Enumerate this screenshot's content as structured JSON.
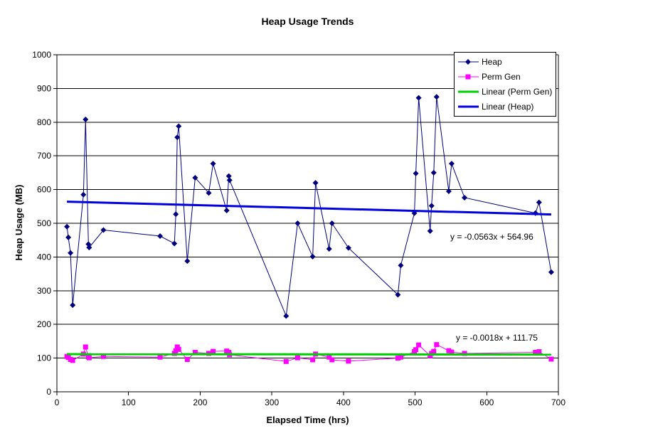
{
  "title": "Heap Usage Trends",
  "axes": {
    "x_label": "Elapsed Time (hrs)",
    "y_label": "Heap Usage (MB)",
    "x_ticks": [
      0,
      100,
      200,
      300,
      400,
      500,
      600,
      700
    ],
    "y_ticks": [
      0,
      100,
      200,
      300,
      400,
      500,
      600,
      700,
      800,
      900,
      1000
    ]
  },
  "legend": {
    "position": "top-right",
    "items": [
      "Heap",
      "Perm Gen",
      "Linear (Perm Gen)",
      "Linear (Heap)"
    ]
  },
  "colors": {
    "background": "#FFFFFF",
    "text": "#000000",
    "gridline": "#000000",
    "axis": "#000000"
  },
  "chart_data": {
    "type": "line",
    "title": "Heap Usage Trends",
    "xlabel": "Elapsed Time (hrs)",
    "ylabel": "Heap Usage (MB)",
    "xlim": [
      0,
      700
    ],
    "ylim": [
      0,
      1000
    ],
    "grid": "horizontal-only",
    "legend_position": "top-right",
    "series": [
      {
        "name": "Heap",
        "color": "#000080",
        "marker": "diamond",
        "line_width": 1,
        "x": [
          14,
          16,
          19,
          22,
          37,
          40,
          44,
          45,
          65,
          144,
          164,
          166,
          168,
          170,
          182,
          193,
          212,
          218,
          237,
          240,
          241,
          320,
          336,
          357,
          361,
          380,
          384,
          407,
          476,
          480,
          499,
          501,
          505,
          521,
          523,
          526,
          530,
          547,
          551,
          569,
          668,
          673,
          690
        ],
        "y": [
          490,
          458,
          412,
          257,
          585,
          808,
          438,
          428,
          480,
          462,
          440,
          527,
          755,
          788,
          388,
          635,
          590,
          677,
          538,
          640,
          628,
          225,
          500,
          401,
          620,
          424,
          500,
          427,
          288,
          375,
          530,
          648,
          872,
          477,
          552,
          650,
          875,
          595,
          677,
          576,
          530,
          562,
          355
        ]
      },
      {
        "name": "Perm Gen",
        "color": "#FF00FF",
        "marker": "square",
        "line_width": 1,
        "x": [
          14,
          16,
          19,
          22,
          37,
          40,
          44,
          45,
          65,
          144,
          164,
          166,
          168,
          170,
          182,
          193,
          212,
          218,
          237,
          240,
          241,
          320,
          336,
          357,
          361,
          380,
          384,
          407,
          476,
          480,
          499,
          501,
          505,
          521,
          523,
          526,
          530,
          547,
          551,
          569,
          668,
          673,
          690
        ],
        "y": [
          105,
          102,
          96,
          93,
          112,
          133,
          104,
          101,
          105,
          103,
          114,
          122,
          133,
          126,
          96,
          117,
          114,
          120,
          121,
          117,
          110,
          90,
          101,
          95,
          112,
          103,
          95,
          91,
          100,
          103,
          119,
          125,
          139,
          107,
          114,
          120,
          140,
          122,
          118,
          114,
          117,
          119,
          97
        ]
      },
      {
        "name": "Linear (Perm Gen)",
        "trendline": true,
        "color": "#00D000",
        "line_width": 3,
        "slope": -0.0018,
        "intercept": 111.75,
        "x_start": 14,
        "x_end": 690,
        "equation": "y = -0.0018x + 111.75"
      },
      {
        "name": "Linear (Heap)",
        "trendline": true,
        "color": "#0000E0",
        "line_width": 3,
        "slope": -0.0563,
        "intercept": 564.96,
        "x_start": 14,
        "x_end": 690,
        "equation": "y = -0.0563x + 564.96"
      }
    ]
  }
}
